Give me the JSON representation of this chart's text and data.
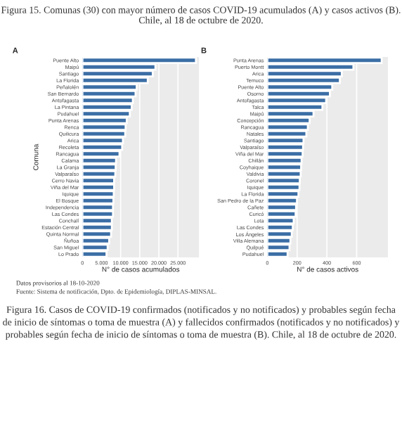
{
  "chart_data": [
    {
      "type": "bar",
      "orientation": "horizontal",
      "title": "A",
      "ylabel": "Comuna",
      "xlabel": "N° de casos acumulados",
      "categories": [
        "Puente Alto",
        "Maipú",
        "Santiago",
        "La Florida",
        "Peñalolén",
        "San Bernardo",
        "Antofagasta",
        "La Pintana",
        "Pudahuel",
        "Punta Arenas",
        "Renca",
        "Quilicura",
        "Arica",
        "Recoleta",
        "Rancagua",
        "Calama",
        "La Granja",
        "Valparaíso",
        "Cerro Navia",
        "Viña del Mar",
        "Iquique",
        "El Bosque",
        "Independencia",
        "Las Condes",
        "Conchalí",
        "Estación Central",
        "Quinta Normal",
        "Ñuñoa",
        "San Miguel",
        "Lo Prado"
      ],
      "values": [
        29700,
        19100,
        18400,
        17100,
        14200,
        13900,
        13200,
        12900,
        12400,
        11600,
        11300,
        11200,
        10600,
        10400,
        9700,
        8800,
        8700,
        8600,
        8300,
        8300,
        8200,
        8100,
        8000,
        8000,
        7700,
        7700,
        7500,
        7000,
        6600,
        6300
      ],
      "color": "#3b6ea5",
      "xlim": [
        0,
        30500
      ],
      "xticks": [
        0,
        {
          "value": 5000,
          "label": "5.000"
        },
        {
          "value": 10000,
          "label": "10.000"
        },
        {
          "value": 15000,
          "label": "15.000"
        },
        {
          "value": 20000,
          "label": "20.000"
        },
        {
          "value": 25000,
          "label": "25.000"
        }
      ],
      "grid": "x",
      "annotations": [
        "Figura 15. Comunas (30) con mayor número de casos COVID-19 acumulados (A) y casos activos (B). Chile, al 18 de octubre de 2020.",
        "Datos provisorios al 18-10-2020",
        "Fuente: Sistema de notificación, Dpto. de Epidemiología, DIPLAS-MINSAL.",
        "Figura 16. Casos de COVID-19 confirmados (notificados y no notificados) y probables según fecha de inicio de síntomas o toma de muestra (A) y fallecidos confirmados (notificados y no notificados) y probables según fecha de inicio de síntomas o toma de muestra (B). Chile, al 18 de octubre de 2020."
      ]
    },
    {
      "type": "bar",
      "orientation": "horizontal",
      "title": "B",
      "xlabel": "N° de casos activos",
      "categories": [
        "Punta Arenas",
        "Puerto Montt",
        "Arica",
        "Temuco",
        "Puente Alto",
        "Osorno",
        "Antofagasta",
        "Talca",
        "Maipú",
        "Concepción",
        "Rancagua",
        "Natales",
        "Santiago",
        "Valparaíso",
        "Viña del Mar",
        "Chillán",
        "Coyhaique",
        "Valdivia",
        "Coronel",
        "Iquique",
        "La Florida",
        "San Pedro de la Paz",
        "Cañete",
        "Curicó",
        "Lota",
        "Las Condes",
        "Los Ángeles",
        "Villa Alemana",
        "Quilpué",
        "Pudahuel"
      ],
      "values": [
        768,
        578,
        500,
        487,
        436,
        420,
        395,
        370,
        310,
        284,
        272,
        262,
        243,
        240,
        237,
        230,
        227,
        224,
        218,
        216,
        209,
        199,
        193,
        190,
        177,
        171,
        164,
        155,
        149,
        136
      ],
      "color": "#3b6ea5",
      "xlim": [
        0,
        810
      ],
      "xticks": [
        0,
        200,
        400,
        600
      ],
      "grid": "x"
    }
  ]
}
